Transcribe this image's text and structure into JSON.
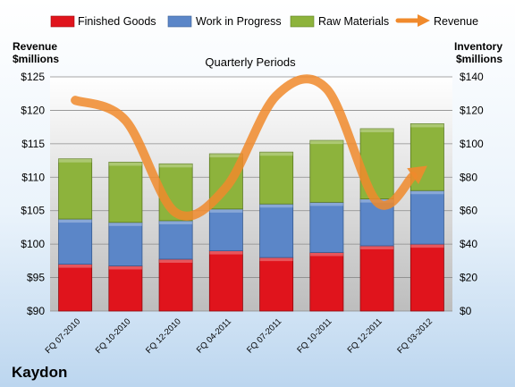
{
  "company": "Kaydon",
  "chart_data": {
    "type": "bar",
    "subtitle": "Quarterly Periods",
    "categories": [
      "FQ 07-2010",
      "FQ 10-2010",
      "FQ 12-2010",
      "FQ 04-2011",
      "FQ 07-2011",
      "FQ 10-2011",
      "FQ 12-2011",
      "FQ 03-2012"
    ],
    "left_axis": {
      "label_line1": "Revenue",
      "label_line2": "$millions",
      "range": [
        90,
        125
      ],
      "ticks": [
        "$90",
        "$95",
        "$100",
        "$105",
        "$110",
        "$115",
        "$120",
        "$125"
      ]
    },
    "right_axis": {
      "label_line1": "Inventory",
      "label_line2": "$millions",
      "range": [
        0,
        140
      ],
      "ticks": [
        "$0",
        "$20",
        "$40",
        "$60",
        "$80",
        "$100",
        "$120",
        "$140"
      ]
    },
    "series": [
      {
        "name": "Finished Goods",
        "axis": "right",
        "color": "#e0141c",
        "values": [
          28,
          27,
          31,
          36,
          32,
          35,
          39,
          40
        ]
      },
      {
        "name": "Work in Progress",
        "axis": "right",
        "color": "#5b86c8",
        "values": [
          27,
          26,
          23,
          25,
          32,
          30,
          28,
          32
        ]
      },
      {
        "name": "Raw Materials",
        "axis": "right",
        "color": "#8db33c",
        "values": [
          36,
          36,
          34,
          33,
          31,
          37,
          42,
          40
        ]
      },
      {
        "name": "Revenue",
        "axis": "left",
        "type": "line",
        "color": "#f08a2c",
        "values": [
          121.5,
          118.5,
          104.7,
          108.5,
          122.2,
          123.2,
          106.3,
          111.7
        ]
      }
    ],
    "grid": true,
    "legend_position": "top"
  }
}
